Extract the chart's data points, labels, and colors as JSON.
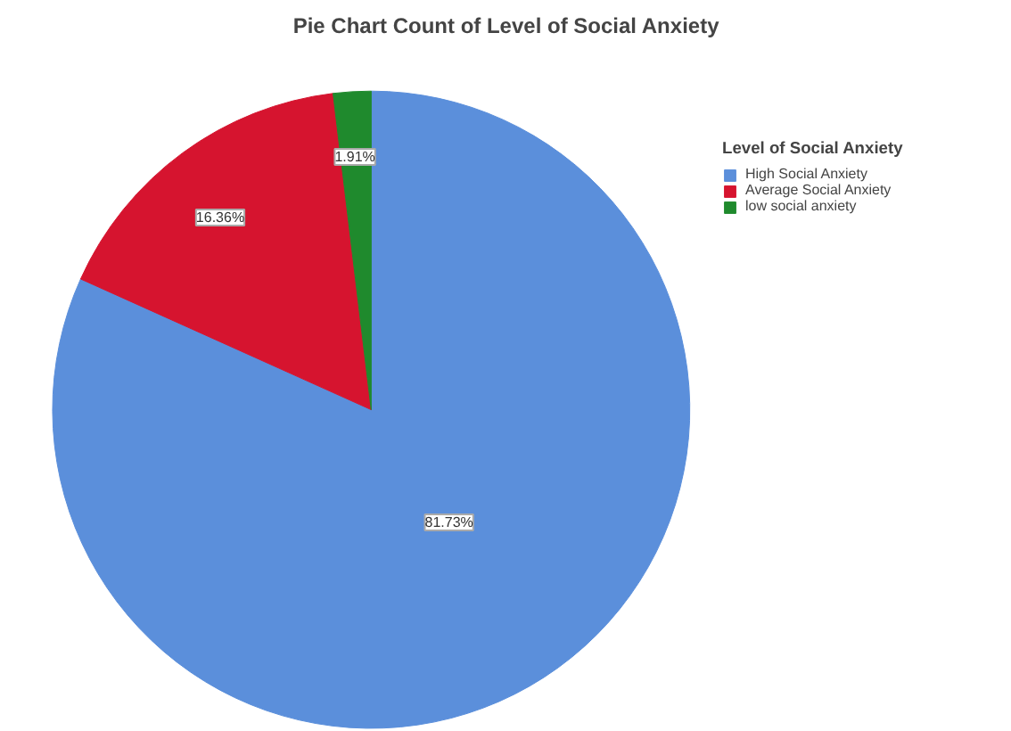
{
  "chart_data": {
    "type": "pie",
    "title": "Pie Chart Count of Level of Social Anxiety",
    "legend_title": "Level of Social Anxiety",
    "legend": "right",
    "categories": [
      "High Social Anxiety",
      "Average Social Anxiety",
      "low social anxiety"
    ],
    "values": [
      81.73,
      16.36,
      1.91
    ],
    "colors": [
      "#5b8fdb",
      "#d6142f",
      "#1f8a2d"
    ],
    "value_labels": [
      "81.73%",
      "16.36%",
      "1.91%"
    ]
  }
}
